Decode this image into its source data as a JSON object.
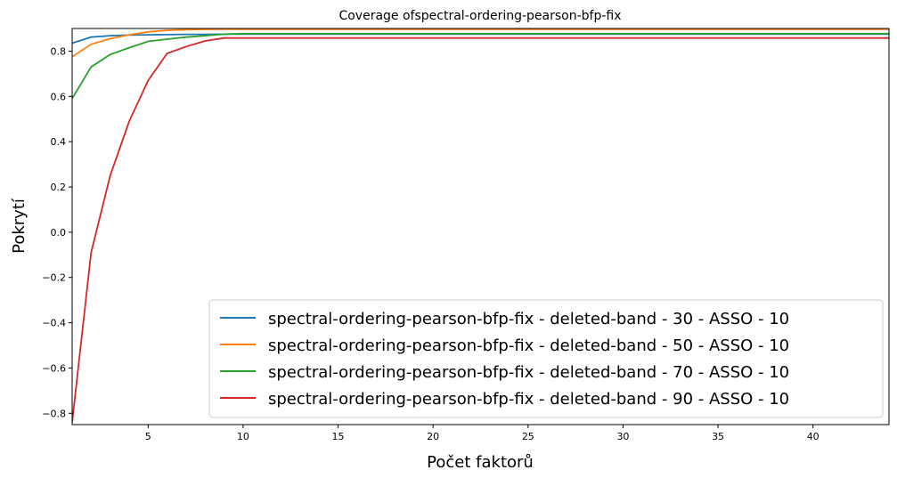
{
  "chart_data": {
    "type": "line",
    "title": "Coverage ofspectral-ordering-pearson-bfp-fix",
    "xlabel": "Počet faktorů",
    "ylabel": "Pokrytí",
    "xlim": [
      1,
      44
    ],
    "ylim": [
      -0.85,
      0.9
    ],
    "xticks": [
      5,
      10,
      15,
      20,
      25,
      30,
      35,
      40
    ],
    "yticks": [
      -0.8,
      -0.6,
      -0.4,
      -0.2,
      0.0,
      0.2,
      0.4,
      0.6,
      0.8
    ],
    "ytick_labels": [
      "−0.8",
      "−0.6",
      "−0.4",
      "−0.2",
      "0.0",
      "0.2",
      "0.4",
      "0.6",
      "0.8"
    ],
    "grid": false,
    "legend_position": "lower-right",
    "series": [
      {
        "name": "spectral-ordering-pearson-bfp-fix - deleted-band - 30 - ASSO - 10",
        "color": "#1f77b4",
        "x": [
          1,
          2,
          3,
          4,
          5,
          6,
          7,
          8,
          9,
          10,
          44
        ],
        "y": [
          0.835,
          0.862,
          0.868,
          0.871,
          0.872,
          0.873,
          0.874,
          0.874,
          0.875,
          0.875,
          0.875
        ]
      },
      {
        "name": "spectral-ordering-pearson-bfp-fix - deleted-band - 50 - ASSO - 10",
        "color": "#ff7f0e",
        "x": [
          1,
          2,
          3,
          4,
          5,
          6,
          7,
          8,
          9,
          10,
          44
        ],
        "y": [
          0.775,
          0.83,
          0.855,
          0.872,
          0.885,
          0.892,
          0.895,
          0.896,
          0.897,
          0.897,
          0.897
        ]
      },
      {
        "name": "spectral-ordering-pearson-bfp-fix - deleted-band - 70 - ASSO - 10",
        "color": "#2ca02c",
        "x": [
          1,
          2,
          3,
          4,
          5,
          6,
          7,
          8,
          9,
          10,
          44
        ],
        "y": [
          0.59,
          0.73,
          0.785,
          0.815,
          0.843,
          0.853,
          0.862,
          0.868,
          0.875,
          0.877,
          0.877
        ]
      },
      {
        "name": "spectral-ordering-pearson-bfp-fix - deleted-band - 90 - ASSO - 10",
        "color": "#d62728",
        "x": [
          1,
          2,
          3,
          4,
          5,
          6,
          7,
          8,
          9,
          10,
          44
        ],
        "y": [
          -0.84,
          -0.09,
          0.25,
          0.49,
          0.67,
          0.79,
          0.82,
          0.845,
          0.858,
          0.858,
          0.858
        ]
      }
    ]
  }
}
